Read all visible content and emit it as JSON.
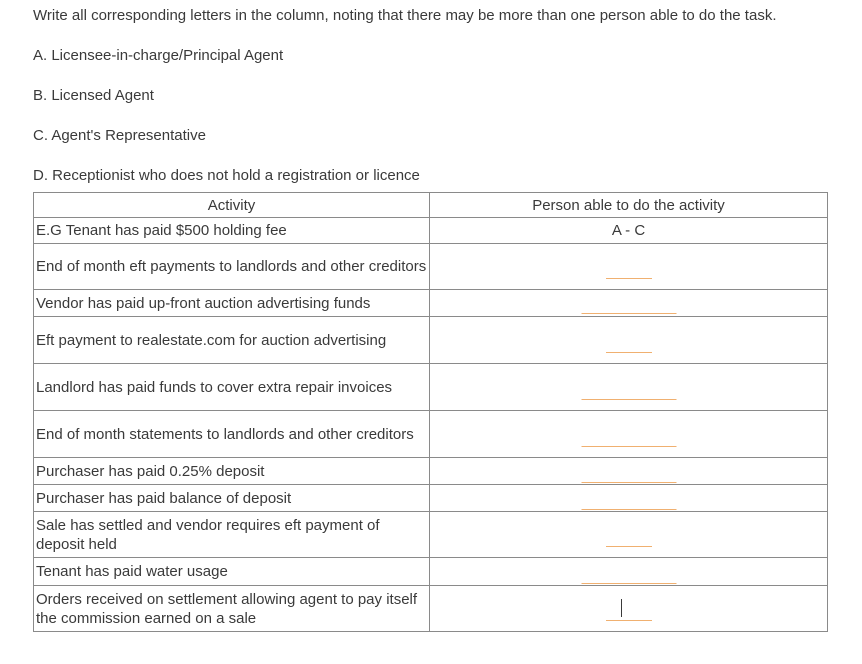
{
  "instructions": "Write all corresponding letters in the column, noting that there may be more than one person able to do the task.",
  "options": [
    {
      "text": "A. Licensee-in-charge/Principal Agent"
    },
    {
      "text": "B. Licensed Agent"
    },
    {
      "text": "C. Agent's Representative"
    },
    {
      "text": "D. Receptionist who does not hold a registration or licence"
    }
  ],
  "table": {
    "headers": {
      "activity": "Activity",
      "person": "Person able to do the activity"
    },
    "rows": [
      {
        "activity": "E.G Tenant has paid $500 holding fee",
        "answer": "A - C"
      },
      {
        "activity": "End of month eft payments to landlords and other creditors",
        "answer": ""
      },
      {
        "activity": "Vendor has paid up-front auction advertising funds",
        "answer": ""
      },
      {
        "activity": "Eft payment to realestate.com for auction advertising",
        "answer": ""
      },
      {
        "activity": "Landlord has paid funds to cover extra repair invoices",
        "answer": ""
      },
      {
        "activity": "End of month statements to landlords and other creditors",
        "answer": ""
      },
      {
        "activity": "Purchaser has paid 0.25% deposit",
        "answer": ""
      },
      {
        "activity": "Purchaser has paid balance of deposit",
        "answer": ""
      },
      {
        "activity": "Sale has settled and vendor requires eft payment of deposit held",
        "answer": ""
      },
      {
        "activity": "Tenant has paid water usage",
        "answer": ""
      },
      {
        "activity": "Orders received on settlement allowing agent to pay itself the commission earned on a sale",
        "answer": ""
      }
    ]
  },
  "colors": {
    "text": "#3a3a3a",
    "border": "#8a8a8a",
    "answer_blank_line": "#f0b070"
  }
}
